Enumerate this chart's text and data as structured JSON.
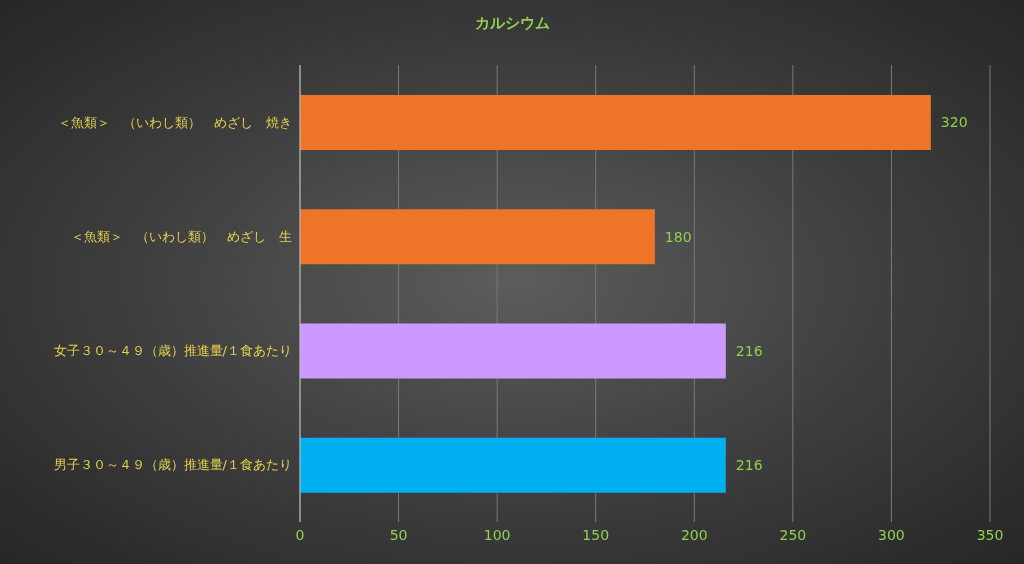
{
  "chart_data": {
    "type": "bar",
    "orientation": "horizontal",
    "title": "カルシウム",
    "categories": [
      "＜魚類＞　（いわし類）　めざし　焼き",
      "＜魚類＞　（いわし類）　めざし　生",
      "女子３０～４９（歳）推進量/１食あたり",
      "男子３０～４９（歳）推進量/１食あたり"
    ],
    "values": [
      320,
      180,
      216,
      216
    ],
    "colors": [
      "#ee7427",
      "#ee7427",
      "#cc99ff",
      "#00b0f0"
    ],
    "xlim": [
      0,
      350
    ],
    "xticks": [
      0,
      50,
      100,
      150,
      200,
      250,
      300,
      350
    ],
    "grid": "x",
    "data_labels": true
  }
}
